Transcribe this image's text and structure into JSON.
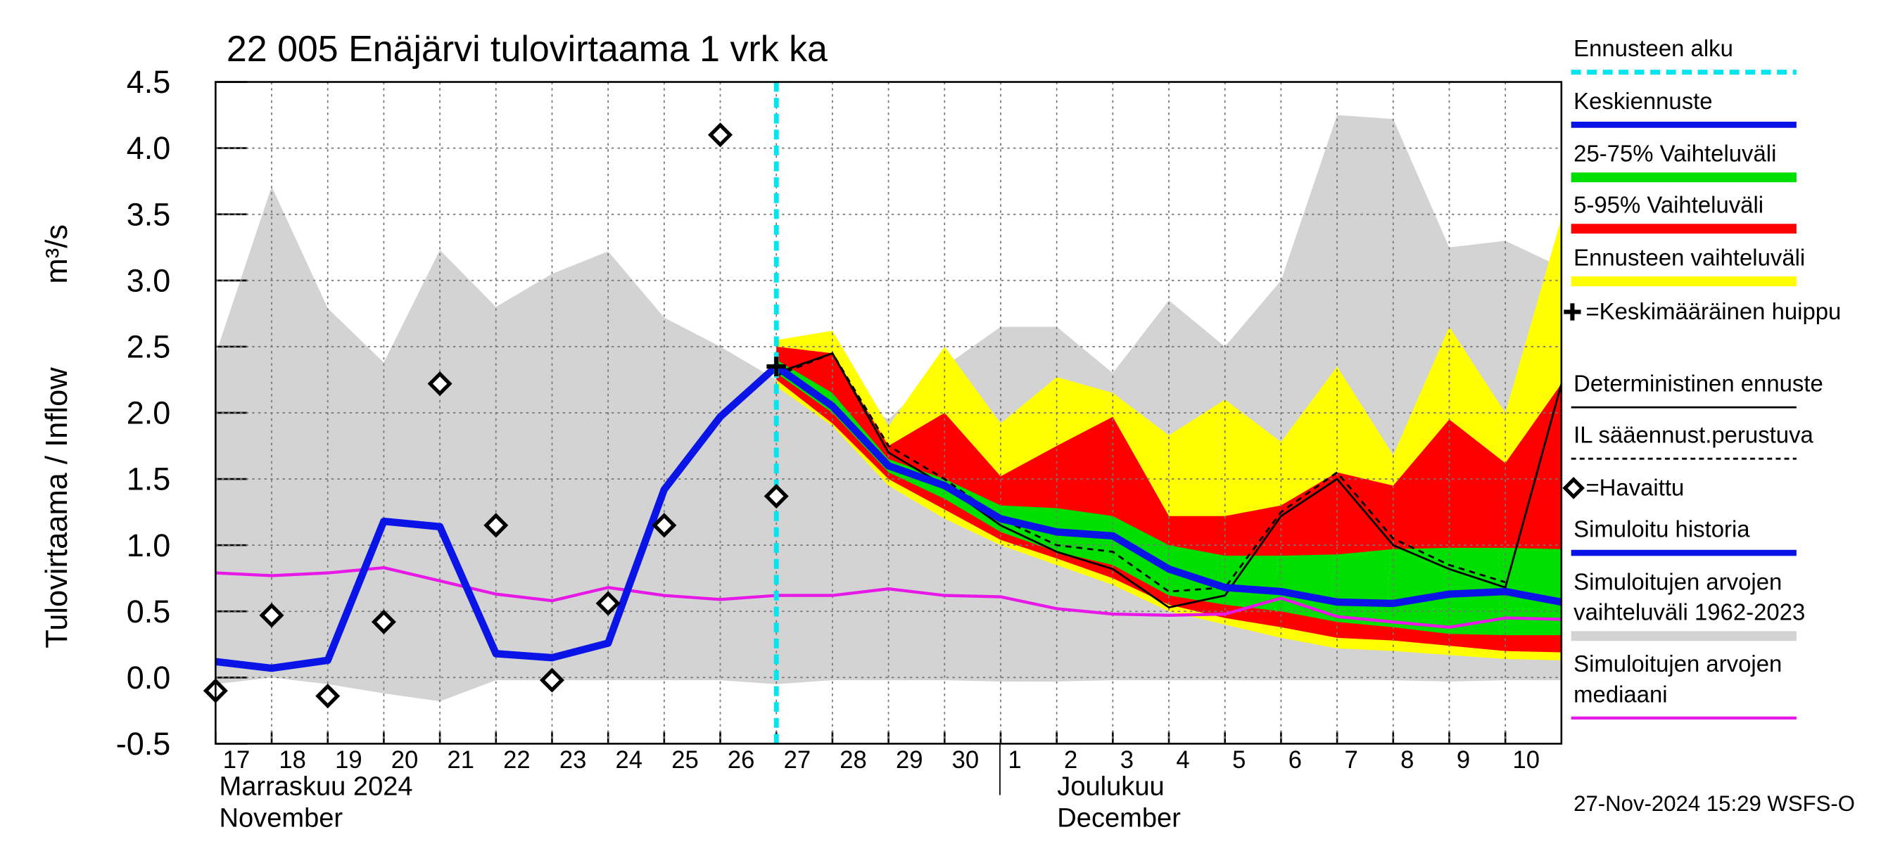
{
  "chart_data": {
    "type": "line",
    "title": "22 005 Enäjärvi tulovirtaama 1 vrk ka",
    "y_label": "Tulovirtaama / Inflow",
    "y_unit": "m³/s",
    "x_month_labels": [
      "Marraskuu 2024",
      "November",
      "Joulukuu",
      "December"
    ],
    "timestamp": "27-Nov-2024 15:29 WSFS-O",
    "x": [
      "2024-11-17",
      "2024-11-18",
      "2024-11-19",
      "2024-11-20",
      "2024-11-21",
      "2024-11-22",
      "2024-11-23",
      "2024-11-24",
      "2024-11-25",
      "2024-11-26",
      "2024-11-27",
      "2024-11-28",
      "2024-11-29",
      "2024-11-30",
      "2024-12-01",
      "2024-12-02",
      "2024-12-03",
      "2024-12-04",
      "2024-12-05",
      "2024-12-06",
      "2024-12-07",
      "2024-12-08",
      "2024-12-09",
      "2024-12-10",
      "2024-12-11"
    ],
    "xlim": [
      "2024-11-17",
      "2024-12-11"
    ],
    "xticks": [
      {
        "value": "2024-11-17",
        "label": "17"
      },
      {
        "value": "2024-11-18",
        "label": "18"
      },
      {
        "value": "2024-11-19",
        "label": "19"
      },
      {
        "value": "2024-11-20",
        "label": "20"
      },
      {
        "value": "2024-11-21",
        "label": "21"
      },
      {
        "value": "2024-11-22",
        "label": "22"
      },
      {
        "value": "2024-11-23",
        "label": "23"
      },
      {
        "value": "2024-11-24",
        "label": "24"
      },
      {
        "value": "2024-11-25",
        "label": "25"
      },
      {
        "value": "2024-11-26",
        "label": "26"
      },
      {
        "value": "2024-11-27",
        "label": "27"
      },
      {
        "value": "2024-11-28",
        "label": "28"
      },
      {
        "value": "2024-11-29",
        "label": "29"
      },
      {
        "value": "2024-11-30",
        "label": "30"
      },
      {
        "value": "2024-12-01",
        "label": "1"
      },
      {
        "value": "2024-12-02",
        "label": "2"
      },
      {
        "value": "2024-12-03",
        "label": "3"
      },
      {
        "value": "2024-12-04",
        "label": "4"
      },
      {
        "value": "2024-12-05",
        "label": "5"
      },
      {
        "value": "2024-12-06",
        "label": "6"
      },
      {
        "value": "2024-12-07",
        "label": "7"
      },
      {
        "value": "2024-12-08",
        "label": "8"
      },
      {
        "value": "2024-12-09",
        "label": "9"
      },
      {
        "value": "2024-12-10",
        "label": "10"
      }
    ],
    "ylim": [
      -0.5,
      4.5
    ],
    "yticks": [
      -0.5,
      {
        "value": 0,
        "label": "0.0"
      },
      0.5,
      {
        "value": 1,
        "label": "1.0"
      },
      1.5,
      {
        "value": 2,
        "label": "2.0"
      },
      2.5,
      {
        "value": 3,
        "label": "3.0"
      },
      3.5,
      {
        "value": 4,
        "label": "4.0"
      },
      4.5
    ],
    "grid": true,
    "forecast_start": {
      "name": "Ennusteen alku",
      "x": "2024-11-27",
      "color": "#00e5ee"
    },
    "series": [
      {
        "name": "Keskiennuste",
        "kind": "line",
        "color": "#0a14e6",
        "line_width": 6,
        "values": [
          null,
          null,
          null,
          null,
          null,
          null,
          null,
          null,
          null,
          null,
          2.35,
          2.05,
          1.6,
          1.45,
          1.2,
          1.1,
          1.07,
          0.82,
          0.68,
          0.65,
          0.57,
          0.56,
          0.63,
          0.65,
          0.57
        ]
      },
      {
        "name": "25-75% Vaihteluväli",
        "kind": "band",
        "color": "#00e000",
        "upper": [
          null,
          null,
          null,
          null,
          null,
          null,
          null,
          null,
          null,
          null,
          2.4,
          2.15,
          1.65,
          1.5,
          1.3,
          1.28,
          1.22,
          1.0,
          0.92,
          0.92,
          0.93,
          0.97,
          0.98,
          0.98,
          0.97
        ],
        "lower": [
          null,
          null,
          null,
          null,
          null,
          null,
          null,
          null,
          null,
          null,
          2.3,
          2.0,
          1.55,
          1.35,
          1.1,
          0.95,
          0.85,
          0.62,
          0.55,
          0.5,
          0.42,
          0.38,
          0.33,
          0.32,
          0.32
        ]
      },
      {
        "name": "5-95% Vaihteluväli",
        "kind": "band",
        "color": "#ff0000",
        "upper": [
          null,
          null,
          null,
          null,
          null,
          null,
          null,
          null,
          null,
          null,
          2.5,
          2.45,
          1.75,
          2.0,
          1.52,
          1.75,
          1.97,
          1.22,
          1.22,
          1.3,
          1.55,
          1.45,
          1.95,
          1.62,
          2.22
        ],
        "lower": [
          null,
          null,
          null,
          null,
          null,
          null,
          null,
          null,
          null,
          null,
          2.25,
          1.92,
          1.5,
          1.27,
          1.04,
          0.9,
          0.75,
          0.55,
          0.45,
          0.38,
          0.3,
          0.28,
          0.24,
          0.2,
          0.19
        ]
      },
      {
        "name": "Ennusteen vaihteluväli",
        "kind": "band",
        "color": "#ffff00",
        "upper": [
          null,
          null,
          null,
          null,
          null,
          null,
          null,
          null,
          null,
          null,
          2.55,
          2.62,
          1.9,
          2.5,
          1.92,
          2.27,
          2.15,
          1.83,
          2.1,
          1.78,
          2.35,
          1.68,
          2.65,
          2.0,
          3.47
        ],
        "lower": [
          null,
          null,
          null,
          null,
          null,
          null,
          null,
          null,
          null,
          null,
          2.2,
          1.9,
          1.45,
          1.2,
          1.0,
          0.85,
          0.7,
          0.5,
          0.4,
          0.3,
          0.22,
          0.2,
          0.17,
          0.14,
          0.13
        ]
      },
      {
        "name": "=Keskimääräinen huippu",
        "kind": "plus",
        "color": "#000000",
        "values": [
          null,
          null,
          null,
          null,
          null,
          null,
          null,
          null,
          null,
          null,
          2.35,
          null,
          null,
          null,
          null,
          null,
          null,
          null,
          null,
          null,
          null,
          null,
          null,
          null,
          null
        ]
      },
      {
        "name": "Deterministinen ennuste",
        "kind": "line",
        "color": "#000000",
        "line_width": 1.6,
        "values": [
          null,
          null,
          null,
          null,
          null,
          null,
          null,
          null,
          null,
          null,
          2.3,
          2.45,
          1.7,
          1.45,
          1.15,
          0.95,
          0.82,
          0.53,
          0.62,
          1.22,
          1.5,
          1.0,
          0.82,
          0.68,
          2.22
        ]
      },
      {
        "name": "IL sääennust.perustuva",
        "kind": "dashed",
        "color": "#000000",
        "line_width": 1.6,
        "values": [
          null,
          null,
          null,
          null,
          null,
          null,
          null,
          null,
          null,
          null,
          2.28,
          2.45,
          1.75,
          1.5,
          1.2,
          1.0,
          0.95,
          0.65,
          0.68,
          1.25,
          1.55,
          1.05,
          0.85,
          0.72,
          null
        ]
      },
      {
        "name": "=Havaittu",
        "kind": "diamond",
        "color": "#000000",
        "values": [
          -0.1,
          0.47,
          -0.14,
          0.42,
          2.22,
          1.15,
          -0.02,
          0.56,
          1.15,
          4.1,
          1.37,
          null,
          null,
          null,
          null,
          null,
          null,
          null,
          null,
          null,
          null,
          null,
          null,
          null,
          null
        ]
      },
      {
        "name": "Simuloitu historia",
        "kind": "line",
        "color": "#0a14e6",
        "line_width": 6,
        "values": [
          0.12,
          0.07,
          0.13,
          1.18,
          1.14,
          0.18,
          0.15,
          0.26,
          1.42,
          1.97,
          2.35,
          null,
          null,
          null,
          null,
          null,
          null,
          null,
          null,
          null,
          null,
          null,
          null,
          null,
          null
        ]
      },
      {
        "name": "Simuloitujen arvojen vaihteluväli 1962-2023",
        "kind": "band",
        "color": "#d3d3d3",
        "upper": [
          2.44,
          3.71,
          2.79,
          2.38,
          3.23,
          2.8,
          3.05,
          3.22,
          2.72,
          2.5,
          2.25,
          2.2,
          1.95,
          2.35,
          2.65,
          2.65,
          2.3,
          2.85,
          2.5,
          3.0,
          4.25,
          4.22,
          3.25,
          3.3,
          3.1
        ],
        "lower": [
          -0.05,
          0.0,
          -0.05,
          -0.12,
          -0.18,
          -0.02,
          -0.02,
          -0.02,
          -0.02,
          -0.02,
          -0.05,
          -0.02,
          -0.02,
          -0.02,
          -0.03,
          -0.03,
          -0.02,
          -0.02,
          -0.02,
          -0.02,
          -0.02,
          -0.02,
          -0.03,
          -0.02,
          -0.02
        ]
      },
      {
        "name": "Simuloitujen arvojen mediaani",
        "kind": "line",
        "color": "#e619e6",
        "line_width": 2.5,
        "values": [
          0.79,
          0.77,
          0.79,
          0.83,
          0.73,
          0.63,
          0.58,
          0.68,
          0.62,
          0.59,
          0.62,
          0.62,
          0.67,
          0.62,
          0.61,
          0.52,
          0.48,
          0.47,
          0.48,
          0.6,
          0.46,
          0.42,
          0.38,
          0.45,
          0.44
        ]
      }
    ]
  }
}
